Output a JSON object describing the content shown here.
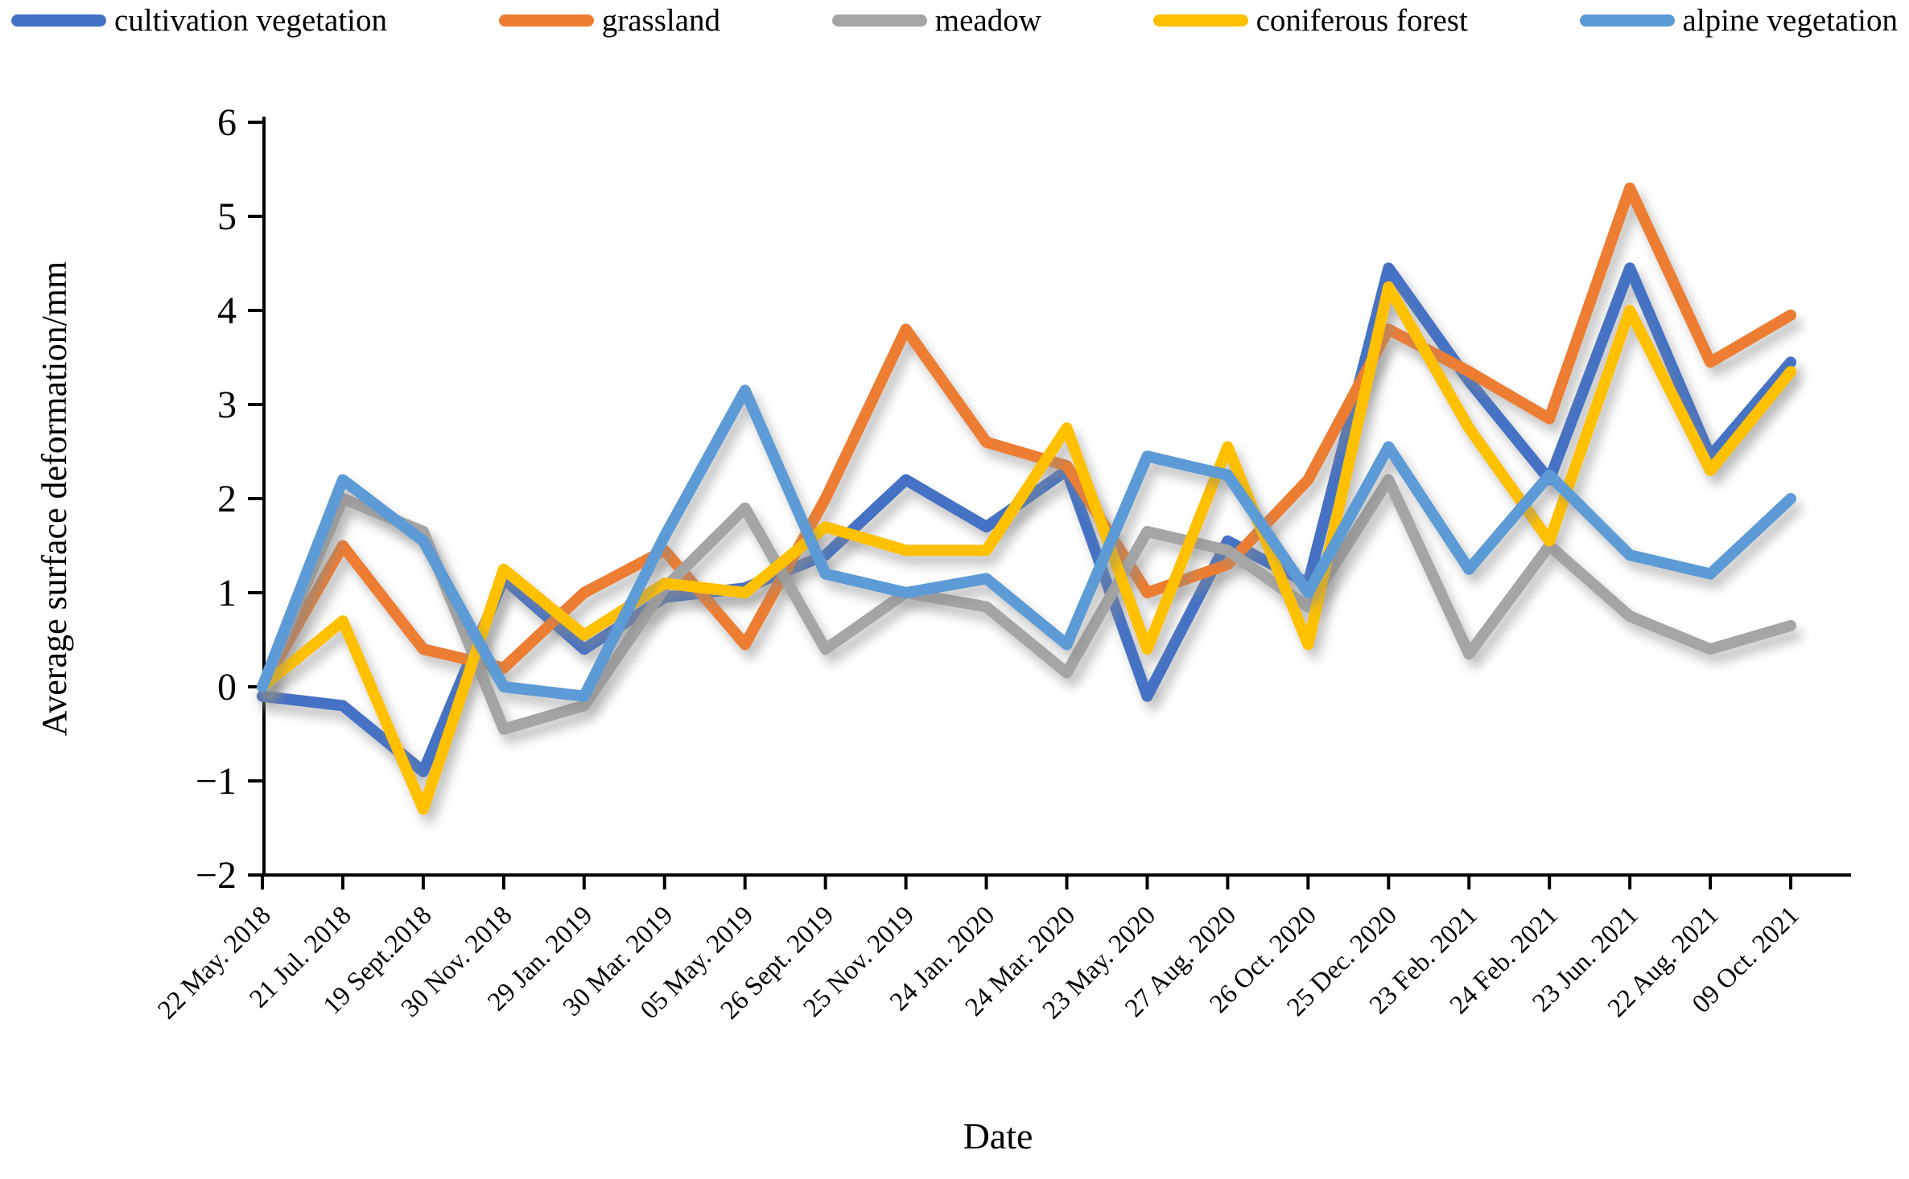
{
  "chart_data": {
    "type": "line",
    "title": "",
    "xlabel": "Date",
    "ylabel": "Average surface deformation/mm",
    "ylim": [
      -2,
      6
    ],
    "yticks": [
      6,
      5,
      4,
      3,
      2,
      1,
      0,
      "−1",
      "−2"
    ],
    "ytick_values": [
      6,
      5,
      4,
      3,
      2,
      1,
      0,
      -1,
      -2
    ],
    "grid": false,
    "legend_position": "top",
    "categories": [
      "22 May. 2018",
      "21 Jul. 2018",
      "19 Sept.2018",
      "30 Nov. 2018",
      "29 Jan. 2019",
      "30 Mar. 2019",
      "05 May. 2019",
      "26 Sept. 2019",
      "25 Nov. 2019",
      "24 Jan. 2020",
      "24 Mar. 2020",
      "23 May. 2020",
      "27 Aug. 2020",
      "26 Oct. 2020",
      "25 Dec. 2020",
      "23 Feb. 2021",
      "24 Feb. 2021",
      "23 Jun. 2021",
      "22 Aug. 2021",
      "09 Oct. 2021"
    ],
    "series": [
      {
        "name": "cultivation vegetation",
        "color": "#4472C4",
        "values": [
          -0.1,
          -0.2,
          -0.9,
          1.15,
          0.4,
          0.95,
          1.05,
          1.4,
          2.2,
          1.7,
          2.3,
          -0.1,
          1.55,
          1.1,
          4.45,
          3.25,
          2.2,
          4.45,
          2.45,
          3.45
        ]
      },
      {
        "name": "grassland",
        "color": "#ED7D31",
        "values": [
          0.0,
          1.5,
          0.4,
          0.2,
          1.0,
          1.45,
          0.45,
          2.0,
          3.8,
          2.6,
          2.35,
          1.0,
          1.3,
          2.2,
          3.8,
          3.35,
          2.85,
          5.3,
          3.45,
          3.95
        ]
      },
      {
        "name": "meadow",
        "color": "#A5A5A5",
        "values": [
          0.0,
          2.0,
          1.65,
          -0.45,
          -0.2,
          1.05,
          1.9,
          0.4,
          1.0,
          0.85,
          0.15,
          1.65,
          1.45,
          0.85,
          2.2,
          0.35,
          1.5,
          0.75,
          0.4,
          0.65
        ]
      },
      {
        "name": "coniferous forest",
        "color": "#FFC000",
        "values": [
          0.0,
          0.7,
          -1.3,
          1.25,
          0.55,
          1.1,
          1.0,
          1.7,
          1.45,
          1.45,
          2.75,
          0.4,
          2.55,
          0.45,
          4.25,
          2.75,
          1.55,
          4.0,
          2.3,
          3.35
        ]
      },
      {
        "name": "alpine vegetation",
        "color": "#5B9BD5",
        "values": [
          0.0,
          2.2,
          1.55,
          0.0,
          -0.1,
          1.6,
          3.15,
          1.2,
          1.0,
          1.15,
          0.45,
          2.45,
          2.25,
          1.0,
          2.55,
          1.25,
          2.25,
          1.4,
          1.2,
          2.0
        ]
      }
    ]
  }
}
